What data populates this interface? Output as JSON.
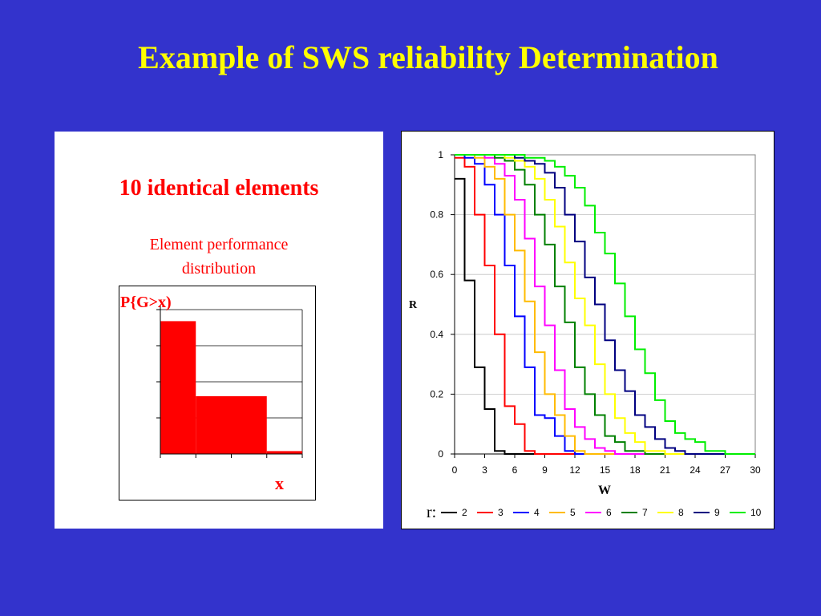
{
  "slide": {
    "title": "Example of SWS reliability Determination",
    "subtitle": "10 identical elements",
    "caption_line1": "Element performance",
    "caption_line2": "distribution"
  },
  "chart_data": [
    {
      "type": "bar",
      "ylabel": "P{G>x)",
      "xlabel": "x",
      "color": "#ff0000",
      "ylim": [
        0,
        1
      ],
      "categories": [
        "1",
        "2",
        "3",
        "4"
      ],
      "values": [
        0.92,
        0.4,
        0.4,
        0.02
      ]
    },
    {
      "type": "line",
      "ylabel": "R",
      "xlabel": "W",
      "xlim": [
        0,
        30
      ],
      "ylim": [
        0,
        1
      ],
      "x_ticks": [
        "0",
        "3",
        "6",
        "9",
        "12",
        "15",
        "18",
        "21",
        "24",
        "27",
        "30"
      ],
      "y_ticks": [
        "0",
        "0.2",
        "0.4",
        "0.6",
        "0.8",
        "1"
      ],
      "grid": "horizontal",
      "legend_title": "r:",
      "legend_position": "bottom",
      "x": [
        0,
        1,
        2,
        3,
        4,
        5,
        6,
        7,
        8,
        9,
        10,
        11,
        12,
        13,
        14,
        15,
        16,
        17,
        18,
        19,
        20,
        21,
        22,
        23,
        24,
        25,
        26,
        27,
        28,
        29,
        30
      ],
      "series": [
        {
          "name": "2",
          "color": "#000000",
          "values": [
            0.92,
            0.58,
            0.29,
            0.15,
            0.01,
            0,
            0,
            0,
            0,
            0,
            0,
            0,
            0,
            0,
            0,
            0,
            0,
            0,
            0,
            0,
            0,
            0,
            0,
            0,
            0,
            0,
            0,
            0,
            0,
            0,
            0
          ]
        },
        {
          "name": "3",
          "color": "#ff0000",
          "values": [
            0.99,
            0.96,
            0.8,
            0.63,
            0.4,
            0.16,
            0.1,
            0.01,
            0,
            0,
            0,
            0,
            0,
            0,
            0,
            0,
            0,
            0,
            0,
            0,
            0,
            0,
            0,
            0,
            0,
            0,
            0,
            0,
            0,
            0,
            0
          ]
        },
        {
          "name": "4",
          "color": "#0000ff",
          "values": [
            1,
            0.99,
            0.97,
            0.9,
            0.8,
            0.63,
            0.46,
            0.29,
            0.13,
            0.12,
            0.06,
            0.01,
            0,
            0,
            0,
            0,
            0,
            0,
            0,
            0,
            0,
            0,
            0,
            0,
            0,
            0,
            0,
            0,
            0,
            0,
            0
          ]
        },
        {
          "name": "5",
          "color": "#ffbb00",
          "values": [
            1,
            1,
            0.99,
            0.96,
            0.92,
            0.8,
            0.68,
            0.51,
            0.34,
            0.2,
            0.13,
            0.06,
            0.01,
            0,
            0,
            0,
            0,
            0,
            0,
            0,
            0,
            0,
            0,
            0,
            0,
            0,
            0,
            0,
            0,
            0,
            0
          ]
        },
        {
          "name": "6",
          "color": "#ff00ff",
          "values": [
            1,
            1,
            1,
            0.99,
            0.97,
            0.93,
            0.85,
            0.72,
            0.56,
            0.43,
            0.28,
            0.15,
            0.09,
            0.05,
            0.02,
            0.01,
            0,
            0,
            0,
            0,
            0,
            0,
            0,
            0,
            0,
            0,
            0,
            0,
            0,
            0,
            0
          ]
        },
        {
          "name": "7",
          "color": "#008000",
          "values": [
            1,
            1,
            1,
            1,
            0.99,
            0.98,
            0.95,
            0.9,
            0.8,
            0.7,
            0.56,
            0.44,
            0.29,
            0.2,
            0.13,
            0.06,
            0.04,
            0.01,
            0.01,
            0,
            0,
            0,
            0,
            0,
            0,
            0,
            0,
            0,
            0,
            0,
            0
          ]
        },
        {
          "name": "8",
          "color": "#ffff00",
          "values": [
            1,
            1,
            1,
            1,
            1,
            0.99,
            0.98,
            0.96,
            0.92,
            0.85,
            0.76,
            0.64,
            0.52,
            0.43,
            0.3,
            0.2,
            0.12,
            0.07,
            0.04,
            0.01,
            0.01,
            0,
            0,
            0,
            0,
            0,
            0,
            0,
            0,
            0,
            0
          ]
        },
        {
          "name": "9",
          "color": "#000080",
          "values": [
            1,
            1,
            1,
            1,
            1,
            1,
            0.99,
            0.98,
            0.97,
            0.94,
            0.89,
            0.8,
            0.71,
            0.59,
            0.5,
            0.38,
            0.28,
            0.21,
            0.13,
            0.09,
            0.05,
            0.02,
            0.01,
            0,
            0,
            0,
            0,
            0,
            0,
            0,
            0
          ]
        },
        {
          "name": "10",
          "color": "#00ee00",
          "values": [
            1,
            1,
            1,
            1,
            1,
            1,
            1,
            0.99,
            0.99,
            0.98,
            0.96,
            0.93,
            0.89,
            0.83,
            0.74,
            0.67,
            0.57,
            0.46,
            0.35,
            0.27,
            0.18,
            0.11,
            0.07,
            0.05,
            0.04,
            0.01,
            0.01,
            0,
            0,
            0,
            0
          ]
        }
      ]
    }
  ]
}
